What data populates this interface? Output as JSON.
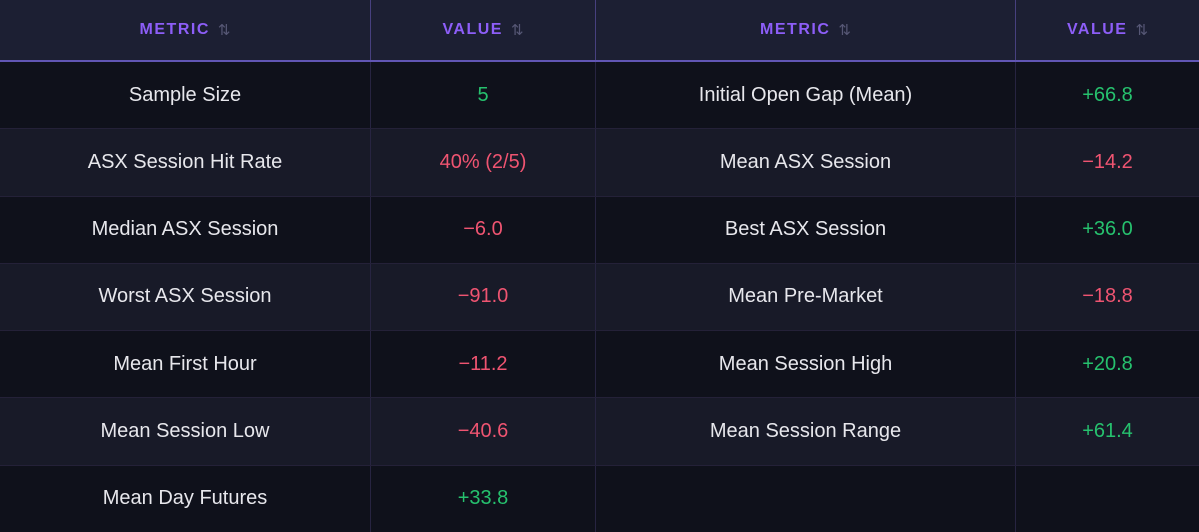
{
  "colors": {
    "positive": "#26c16e",
    "negative": "#ef5471",
    "header-accent": "#8d5ef8"
  },
  "table": {
    "headers": [
      {
        "label": "METRIC",
        "sort_icon": "⇅"
      },
      {
        "label": "VALUE",
        "sort_icon": "⇅"
      },
      {
        "label": "METRIC",
        "sort_icon": "⇅"
      },
      {
        "label": "VALUE",
        "sort_icon": "⇅"
      }
    ],
    "rows": [
      {
        "metric_left": "Sample Size",
        "value_left": "5",
        "value_left_tone": "positive",
        "metric_right": "Initial Open Gap (Mean)",
        "value_right": "+66.8",
        "value_right_tone": "positive"
      },
      {
        "metric_left": "ASX Session Hit Rate",
        "value_left": "40% (2/5)",
        "value_left_tone": "negative",
        "metric_right": "Mean ASX Session",
        "value_right": "−14.2",
        "value_right_tone": "negative"
      },
      {
        "metric_left": "Median ASX Session",
        "value_left": "−6.0",
        "value_left_tone": "negative",
        "metric_right": "Best ASX Session",
        "value_right": "+36.0",
        "value_right_tone": "positive"
      },
      {
        "metric_left": "Worst ASX Session",
        "value_left": "−91.0",
        "value_left_tone": "negative",
        "metric_right": "Mean Pre-Market",
        "value_right": "−18.8",
        "value_right_tone": "negative"
      },
      {
        "metric_left": "Mean First Hour",
        "value_left": "−11.2",
        "value_left_tone": "negative",
        "metric_right": "Mean Session High",
        "value_right": "+20.8",
        "value_right_tone": "positive"
      },
      {
        "metric_left": "Mean Session Low",
        "value_left": "−40.6",
        "value_left_tone": "negative",
        "metric_right": "Mean Session Range",
        "value_right": "+61.4",
        "value_right_tone": "positive"
      },
      {
        "metric_left": "Mean Day Futures",
        "value_left": "+33.8",
        "value_left_tone": "positive",
        "metric_right": "",
        "value_right": "",
        "value_right_tone": ""
      }
    ]
  }
}
